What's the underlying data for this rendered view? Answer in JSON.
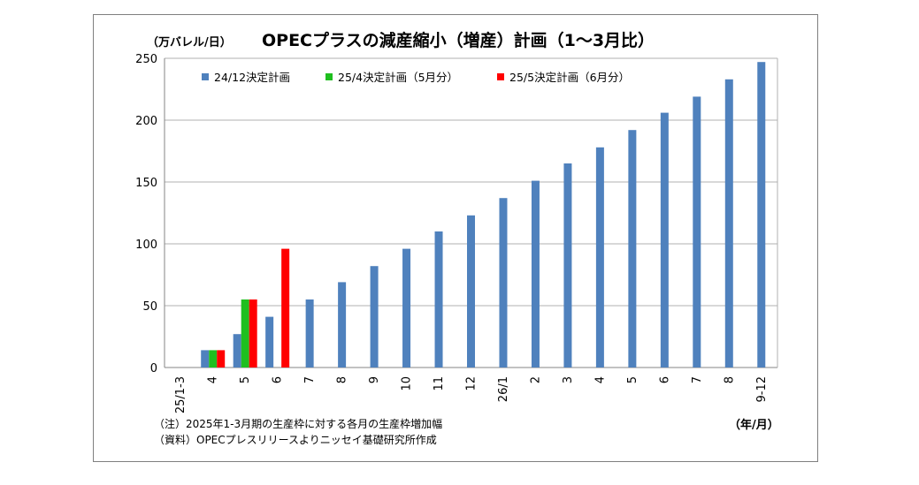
{
  "chart_data": {
    "type": "bar",
    "title": "OPECプラスの減産縮小（増産）計画（1～3月比）",
    "ylabel": "（万バレル/日）",
    "xlabel": "（年/月）",
    "ylim": [
      0,
      250
    ],
    "yticks": [
      "0",
      "50",
      "100",
      "150",
      "200",
      "250"
    ],
    "grid": true,
    "legend_position": "top-left",
    "categories": [
      "25/1-3",
      "4",
      "5",
      "6",
      "7",
      "8",
      "9",
      "10",
      "11",
      "12",
      "26/1",
      "2",
      "3",
      "4",
      "5",
      "6",
      "7",
      "8",
      "9-12"
    ],
    "series": [
      {
        "name": "24/12決定計画",
        "color": "#4f81bd",
        "values": [
          0,
          14,
          27,
          41,
          55,
          69,
          82,
          96,
          110,
          123,
          137,
          151,
          165,
          178,
          192,
          206,
          219,
          233,
          247
        ]
      },
      {
        "name": "25/4決定計画（5月分）",
        "color": "#1fbf1f",
        "values": [
          null,
          14,
          55,
          null,
          null,
          null,
          null,
          null,
          null,
          null,
          null,
          null,
          null,
          null,
          null,
          null,
          null,
          null,
          null
        ]
      },
      {
        "name": "25/5決定計画（6月分）",
        "color": "#ff0000",
        "values": [
          null,
          14,
          55,
          96,
          null,
          null,
          null,
          null,
          null,
          null,
          null,
          null,
          null,
          null,
          null,
          null,
          null,
          null,
          null
        ]
      }
    ],
    "notes": [
      "（注）2025年1-3月期の生産枠に対する各月の生産枠増加幅",
      "（資料）OPECプレスリリースよりニッセイ基礎研究所作成"
    ]
  }
}
